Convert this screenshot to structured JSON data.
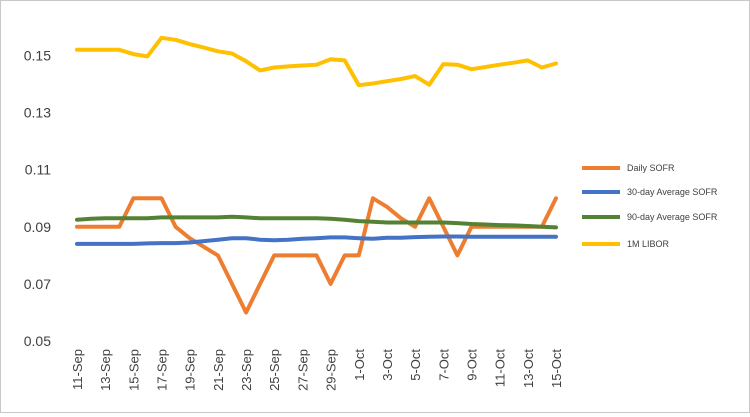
{
  "chart_data": {
    "type": "line",
    "title": "",
    "xlabel": "",
    "ylabel": "",
    "ylim": [
      0.05,
      0.16
    ],
    "yticks": [
      "0.05",
      "0.07",
      "0.09",
      "0.11",
      "0.13",
      "0.15"
    ],
    "grid": false,
    "legend_position": "right",
    "x": [
      "11-Sep",
      "12-Sep",
      "13-Sep",
      "14-Sep",
      "15-Sep",
      "16-Sep",
      "17-Sep",
      "18-Sep",
      "19-Sep",
      "20-Sep",
      "21-Sep",
      "22-Sep",
      "23-Sep",
      "24-Sep",
      "25-Sep",
      "26-Sep",
      "27-Sep",
      "28-Sep",
      "29-Sep",
      "30-Sep",
      "1-Oct",
      "2-Oct",
      "3-Oct",
      "4-Oct",
      "5-Oct",
      "6-Oct",
      "7-Oct",
      "8-Oct",
      "9-Oct",
      "10-Oct",
      "11-Oct",
      "12-Oct",
      "13-Oct",
      "14-Oct",
      "15-Oct"
    ],
    "xtick_labels": [
      "11-Sep",
      "",
      "13-Sep",
      "",
      "15-Sep",
      "",
      "17-Sep",
      "",
      "19-Sep",
      "",
      "21-Sep",
      "",
      "23-Sep",
      "",
      "25-Sep",
      "",
      "27-Sep",
      "",
      "29-Sep",
      "",
      "1-Oct",
      "",
      "3-Oct",
      "",
      "5-Oct",
      "",
      "7-Oct",
      "",
      "9-Oct",
      "",
      "11-Oct",
      "",
      "13-Oct",
      "",
      "15-Oct"
    ],
    "series": [
      {
        "name": "Daily SOFR",
        "color": "#ED7D31",
        "values": [
          0.09,
          0.09,
          0.09,
          0.09,
          0.1,
          0.1,
          0.1,
          0.09,
          0.086,
          0.083,
          0.08,
          0.07,
          0.06,
          0.07,
          0.08,
          0.08,
          0.08,
          0.08,
          0.07,
          0.08,
          0.08,
          0.1,
          0.097,
          0.093,
          0.09,
          0.1,
          0.09,
          0.08,
          0.09,
          0.09,
          0.09,
          0.09,
          0.09,
          0.09,
          0.1
        ]
      },
      {
        "name": "30-day Average SOFR",
        "color": "#4472C4",
        "values": [
          0.084,
          0.084,
          0.084,
          0.084,
          0.084,
          0.0842,
          0.0843,
          0.0843,
          0.0845,
          0.085,
          0.0855,
          0.086,
          0.086,
          0.0855,
          0.0853,
          0.0855,
          0.0858,
          0.086,
          0.0863,
          0.0863,
          0.086,
          0.0858,
          0.0862,
          0.0862,
          0.0864,
          0.0865,
          0.0866,
          0.0866,
          0.0865,
          0.0865,
          0.0865,
          0.0865,
          0.0865,
          0.0865,
          0.0865
        ]
      },
      {
        "name": "90-day Average SOFR",
        "color": "#548235",
        "values": [
          0.0925,
          0.0928,
          0.093,
          0.093,
          0.093,
          0.093,
          0.0933,
          0.0933,
          0.0933,
          0.0933,
          0.0933,
          0.0935,
          0.0933,
          0.093,
          0.093,
          0.093,
          0.093,
          0.093,
          0.0928,
          0.0925,
          0.092,
          0.0918,
          0.0915,
          0.0915,
          0.0915,
          0.0915,
          0.0915,
          0.0913,
          0.091,
          0.0908,
          0.0906,
          0.0905,
          0.0903,
          0.09,
          0.0898
        ]
      },
      {
        "name": "1M LIBOR",
        "color": "#FFC000",
        "values": [
          0.152,
          0.152,
          0.152,
          0.152,
          0.1505,
          0.1497,
          0.1562,
          0.1555,
          0.154,
          0.1528,
          0.1515,
          0.1507,
          0.148,
          0.1448,
          0.1458,
          0.1462,
          0.1465,
          0.1468,
          0.1487,
          0.1483,
          0.1396,
          0.1402,
          0.141,
          0.1418,
          0.1428,
          0.1398,
          0.147,
          0.1468,
          0.1452,
          0.146,
          0.1468,
          0.1475,
          0.1483,
          0.1458,
          0.1472
        ]
      }
    ]
  }
}
